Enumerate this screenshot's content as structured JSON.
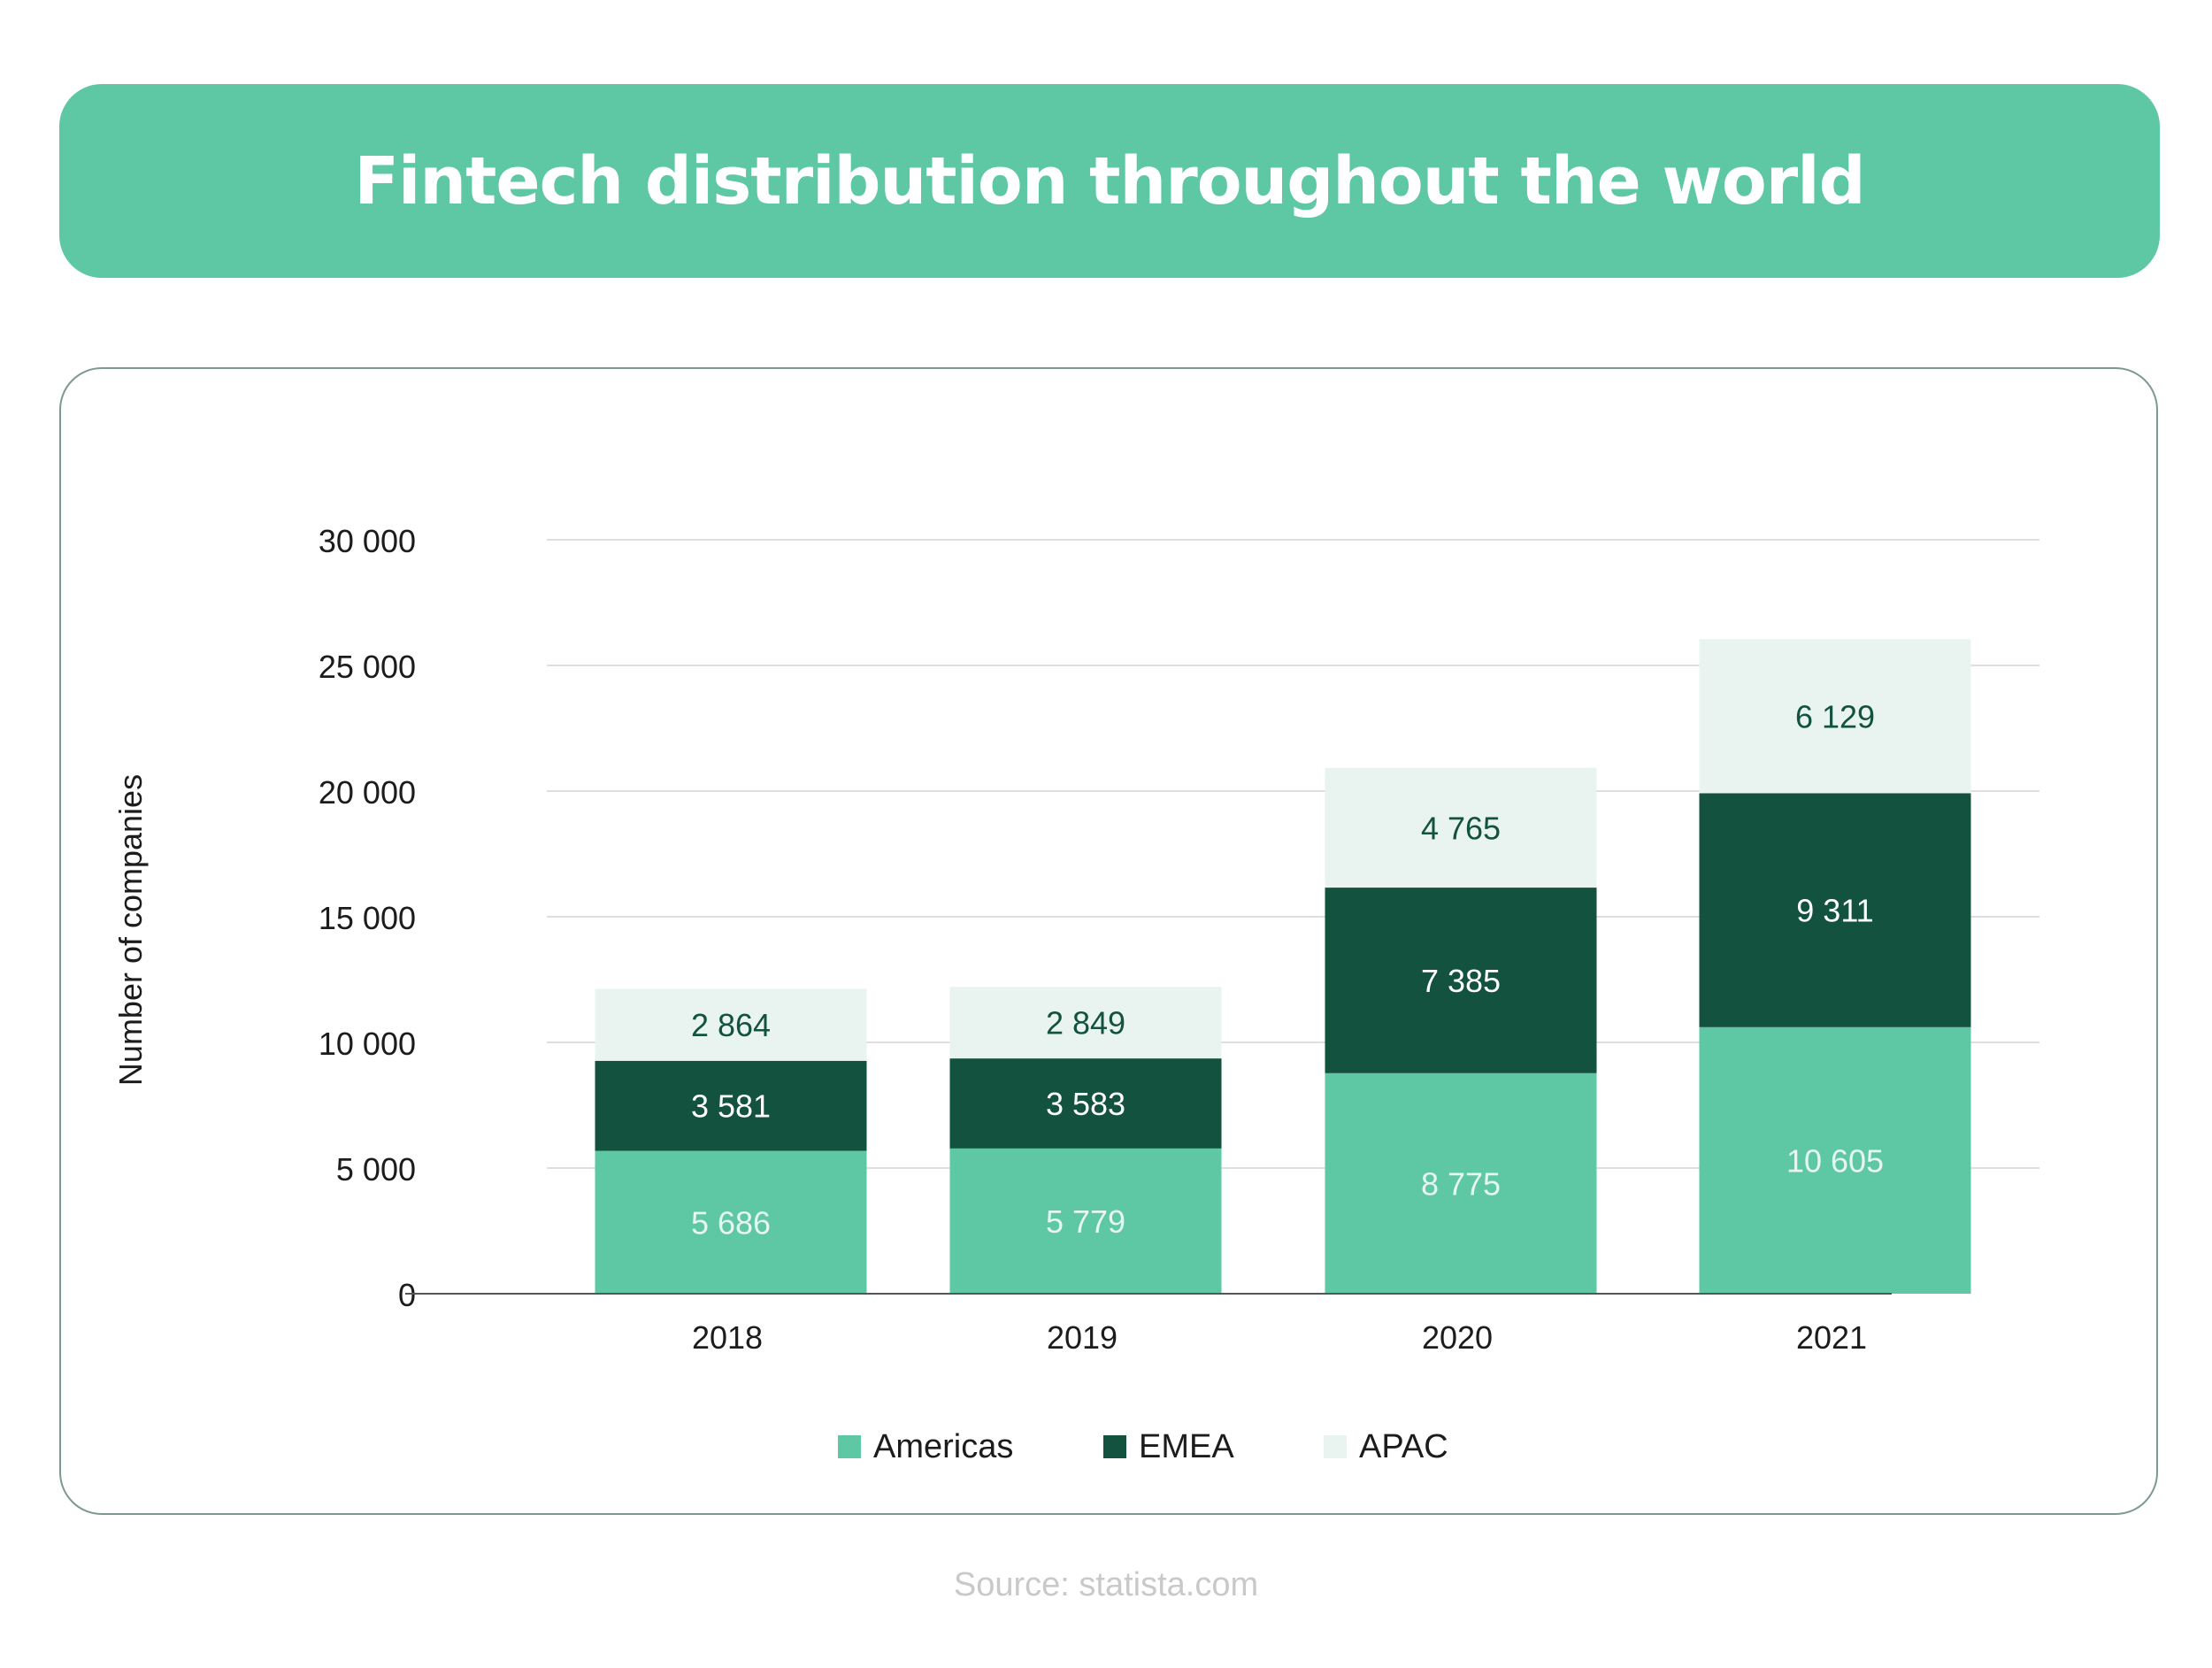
{
  "title": "Fintech distribution throughout the world",
  "source": "Source: statista.com",
  "colors": {
    "americas": "#5ec7a4",
    "emea": "#145240",
    "apac": "#e9f4f1",
    "banner": "#5ec7a4"
  },
  "chart_data": {
    "type": "bar",
    "stacked": true,
    "title": "Fintech distribution throughout the world",
    "xlabel": "",
    "ylabel": "Number of companies",
    "ylim": [
      0,
      30000
    ],
    "yticks": [
      0,
      5000,
      10000,
      15000,
      20000,
      25000,
      30000
    ],
    "ytick_labels": [
      "0",
      "5 000",
      "10 000",
      "15 000",
      "20 000",
      "25 000",
      "30 000"
    ],
    "categories": [
      "2018",
      "2019",
      "2020",
      "2021"
    ],
    "series": [
      {
        "name": "Americas",
        "values": [
          5686,
          5779,
          8775,
          10605
        ],
        "labels": [
          "5 686",
          "5 779",
          "8 775",
          "10 605"
        ]
      },
      {
        "name": "EMEA",
        "values": [
          3581,
          3583,
          7385,
          9311
        ],
        "labels": [
          "3 581",
          "3 583",
          "7 385",
          "9 311"
        ]
      },
      {
        "name": "APAC",
        "values": [
          2864,
          2849,
          4765,
          6129
        ],
        "labels": [
          "2 864",
          "2 849",
          "4 765",
          "6 129"
        ]
      }
    ],
    "grid": true,
    "legend": "bottom"
  }
}
